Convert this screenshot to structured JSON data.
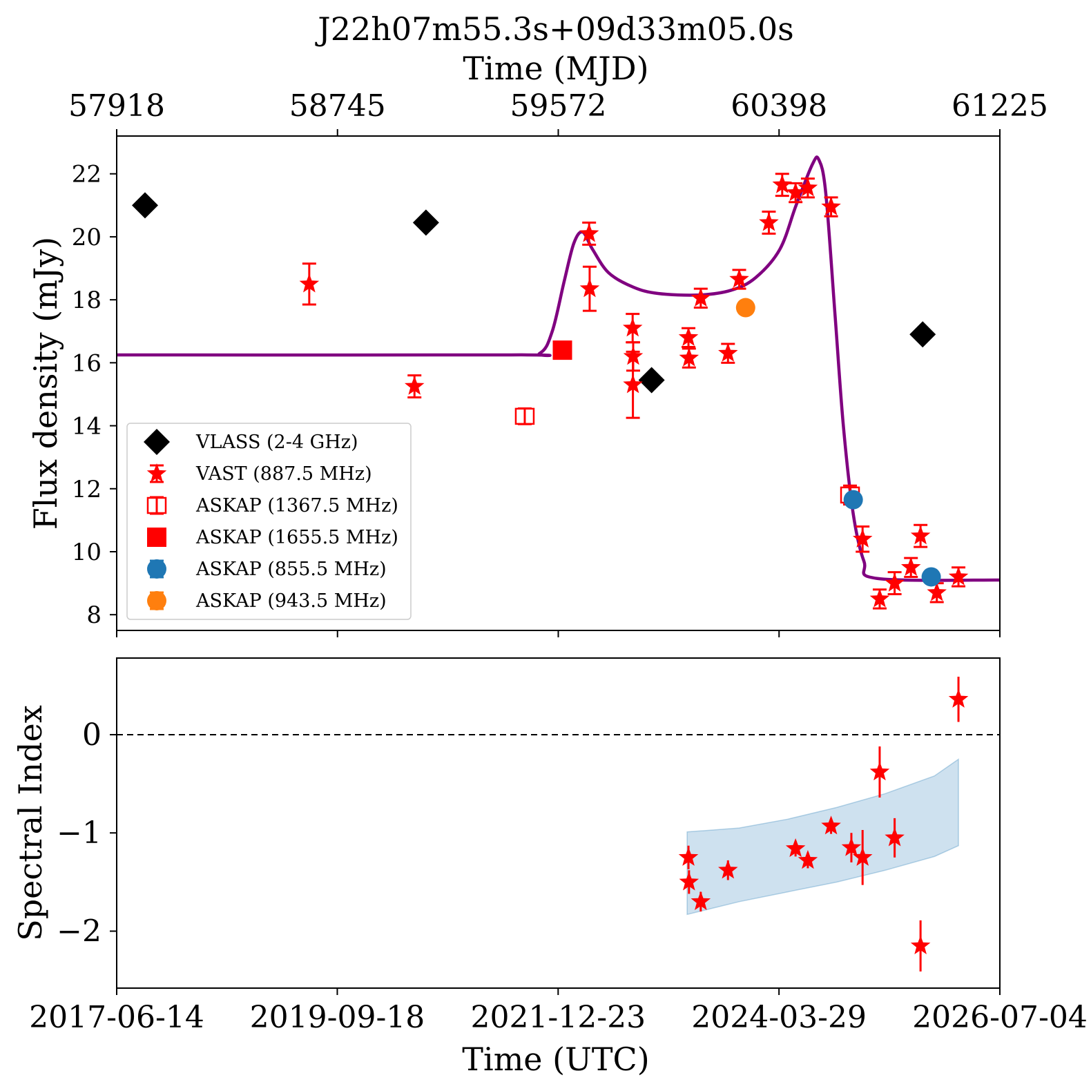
{
  "chart_data": [
    {
      "type": "scatter",
      "panel": "top",
      "title": "J22h07m55.3s+09d33m05.0s",
      "top_xlabel": "Time (MJD)",
      "top_xticks": [
        "57918",
        "58745",
        "59572",
        "60398",
        "61225"
      ],
      "ylabel": "Flux density (mJy)",
      "ylim": [
        7.5,
        23.2
      ],
      "yticks": [
        8,
        10,
        12,
        14,
        16,
        18,
        20,
        22
      ],
      "xlim": [
        "2017-06-14",
        "2026-07-04"
      ],
      "legend_position": "lower-left",
      "grid": false,
      "series": [
        {
          "name": "VLASS (2-4 GHz)",
          "marker": "diamond",
          "color": "#000000",
          "points": [
            {
              "x": "2017-09-28",
              "y": 21.0
            },
            {
              "x": "2020-08-15",
              "y": 20.45
            },
            {
              "x": "2022-12-08",
              "y": 15.45
            },
            {
              "x": "2025-09-18",
              "y": 16.9
            }
          ]
        },
        {
          "name": "VAST (887.5 MHz)",
          "marker": "star",
          "color": "#ff0000",
          "points": [
            {
              "x": "2019-06-05",
              "y": 18.5,
              "err": 0.65
            },
            {
              "x": "2020-07-03",
              "y": 15.25,
              "err": 0.35
            },
            {
              "x": "2022-04-18",
              "y": 20.1,
              "err": 0.35
            },
            {
              "x": "2022-04-20",
              "y": 18.35,
              "err": 0.7
            },
            {
              "x": "2022-09-28",
              "y": 17.1,
              "err": 0.45
            },
            {
              "x": "2022-09-30",
              "y": 16.2,
              "err": 0.45
            },
            {
              "x": "2022-09-29",
              "y": 15.3,
              "err": 1.05
            },
            {
              "x": "2023-04-25",
              "y": 16.8,
              "err": 0.3
            },
            {
              "x": "2023-04-27",
              "y": 16.15,
              "err": 0.3
            },
            {
              "x": "2023-06-10",
              "y": 18.05,
              "err": 0.3
            },
            {
              "x": "2023-09-20",
              "y": 16.3,
              "err": 0.3
            },
            {
              "x": "2023-11-01",
              "y": 18.65,
              "err": 0.3
            },
            {
              "x": "2024-02-20",
              "y": 20.45,
              "err": 0.35
            },
            {
              "x": "2024-04-10",
              "y": 21.65,
              "err": 0.35
            },
            {
              "x": "2024-05-30",
              "y": 21.4,
              "err": 0.3
            },
            {
              "x": "2024-07-15",
              "y": 21.55,
              "err": 0.3
            },
            {
              "x": "2024-10-10",
              "y": 20.95,
              "err": 0.3
            },
            {
              "x": "2025-02-05",
              "y": 10.4,
              "err": 0.4
            },
            {
              "x": "2025-04-10",
              "y": 8.5,
              "err": 0.3
            },
            {
              "x": "2025-06-05",
              "y": 9.0,
              "err": 0.35
            },
            {
              "x": "2025-08-05",
              "y": 9.5,
              "err": 0.3
            },
            {
              "x": "2025-09-10",
              "y": 10.5,
              "err": 0.35
            },
            {
              "x": "2025-11-10",
              "y": 8.7,
              "err": 0.3
            },
            {
              "x": "2026-01-30",
              "y": 9.2,
              "err": 0.3
            }
          ]
        },
        {
          "name": "ASKAP (1367.5 MHz)",
          "marker": "open-square",
          "color": "#ff0000",
          "points": [
            {
              "x": "2021-08-20",
              "y": 14.3,
              "err": 0.25
            },
            {
              "x": "2024-12-20",
              "y": 11.8,
              "err": 0.3
            }
          ]
        },
        {
          "name": "ASKAP (1655.5 MHz)",
          "marker": "filled-square",
          "color": "#ff0000",
          "points": [
            {
              "x": "2022-01-08",
              "y": 16.4,
              "err": 0.2
            }
          ]
        },
        {
          "name": "ASKAP (855.5 MHz)",
          "marker": "circle",
          "color": "#1f77b4",
          "points": [
            {
              "x": "2025-01-01",
              "y": 11.65
            },
            {
              "x": "2025-10-20",
              "y": 9.2
            }
          ]
        },
        {
          "name": "ASKAP (943.5 MHz)",
          "marker": "circle",
          "color": "#ff7f0e",
          "points": [
            {
              "x": "2023-11-25",
              "y": 17.75
            }
          ]
        }
      ],
      "model_curve": {
        "color": "#800080",
        "points": [
          {
            "x": "2017-06-14",
            "y": 16.25
          },
          {
            "x": "2021-07-01",
            "y": 16.25
          },
          {
            "x": "2021-10-15",
            "y": 16.3
          },
          {
            "x": "2021-12-01",
            "y": 17.0
          },
          {
            "x": "2022-01-15",
            "y": 18.6
          },
          {
            "x": "2022-02-20",
            "y": 19.8
          },
          {
            "x": "2022-03-25",
            "y": 20.15
          },
          {
            "x": "2022-05-01",
            "y": 19.6
          },
          {
            "x": "2022-07-01",
            "y": 18.85
          },
          {
            "x": "2022-10-01",
            "y": 18.4
          },
          {
            "x": "2023-01-01",
            "y": 18.2
          },
          {
            "x": "2023-06-01",
            "y": 18.15
          },
          {
            "x": "2023-10-01",
            "y": 18.3
          },
          {
            "x": "2024-01-01",
            "y": 18.7
          },
          {
            "x": "2024-04-01",
            "y": 19.6
          },
          {
            "x": "2024-06-01",
            "y": 21.0
          },
          {
            "x": "2024-08-01",
            "y": 22.3
          },
          {
            "x": "2024-08-25",
            "y": 22.45
          },
          {
            "x": "2024-09-20",
            "y": 21.4
          },
          {
            "x": "2024-10-25",
            "y": 17.5
          },
          {
            "x": "2024-11-25",
            "y": 14.0
          },
          {
            "x": "2025-01-01",
            "y": 11.2
          },
          {
            "x": "2025-02-10",
            "y": 9.7
          },
          {
            "x": "2025-04-01",
            "y": 9.15
          },
          {
            "x": "2026-07-04",
            "y": 9.1
          }
        ]
      }
    },
    {
      "type": "scatter",
      "panel": "bottom",
      "ylabel": "Spectral Index",
      "xlabel": "Time (UTC)",
      "xticks": [
        "2017-06-14",
        "2019-09-18",
        "2021-12-23",
        "2024-03-29",
        "2026-07-04"
      ],
      "xlim": [
        "2017-06-14",
        "2026-07-04"
      ],
      "ylim": [
        -2.58,
        0.78
      ],
      "yticks": [
        -2,
        -1,
        0
      ],
      "reference_line": 0,
      "grid": false,
      "series": [
        {
          "name": "spectral index",
          "marker": "star",
          "color": "#ff0000",
          "points": [
            {
              "x": "2023-04-25",
              "y": -1.25,
              "err": 0.12
            },
            {
              "x": "2023-04-27",
              "y": -1.5,
              "err": 0.12
            },
            {
              "x": "2023-06-10",
              "y": -1.7,
              "err": 0.1
            },
            {
              "x": "2023-09-20",
              "y": -1.38,
              "err": 0.1
            },
            {
              "x": "2024-05-30",
              "y": -1.16,
              "err": 0.08
            },
            {
              "x": "2024-07-15",
              "y": -1.28,
              "err": 0.08
            },
            {
              "x": "2024-10-10",
              "y": -0.93,
              "err": 0.08
            },
            {
              "x": "2024-12-25",
              "y": -1.15,
              "err": 0.15
            },
            {
              "x": "2025-02-05",
              "y": -1.25,
              "err": 0.28
            },
            {
              "x": "2025-04-10",
              "y": -0.38,
              "err": 0.26
            },
            {
              "x": "2025-06-05",
              "y": -1.05,
              "err": 0.2
            },
            {
              "x": "2025-09-10",
              "y": -2.15,
              "err": 0.26
            },
            {
              "x": "2026-01-30",
              "y": 0.36,
              "err": 0.23
            }
          ]
        }
      ],
      "uncertainty_band": {
        "color": "#1f77b4",
        "points": [
          {
            "x": "2023-04-20",
            "low": -1.83,
            "high": -0.99
          },
          {
            "x": "2023-11-01",
            "low": -1.7,
            "high": -0.95
          },
          {
            "x": "2024-05-01",
            "low": -1.6,
            "high": -0.86
          },
          {
            "x": "2024-11-01",
            "low": -1.5,
            "high": -0.74
          },
          {
            "x": "2025-05-01",
            "low": -1.38,
            "high": -0.6
          },
          {
            "x": "2025-11-01",
            "low": -1.24,
            "high": -0.42
          },
          {
            "x": "2026-01-30",
            "low": -1.13,
            "high": -0.25
          }
        ]
      }
    }
  ]
}
